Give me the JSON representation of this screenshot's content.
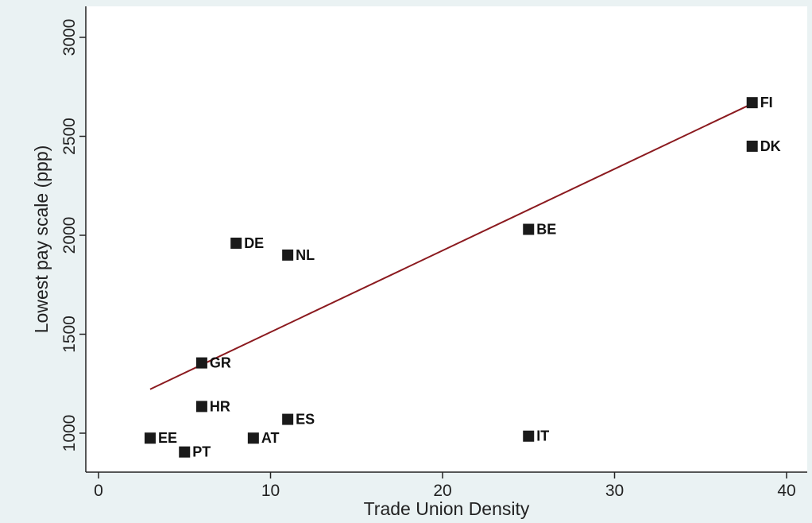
{
  "chart_data": {
    "type": "scatter",
    "title": "",
    "xlabel": "Trade Union Density",
    "ylabel": "Lowest pay scale (ppp)",
    "xlim": [
      0,
      40
    ],
    "ylim": [
      1000,
      3000
    ],
    "xticks": [
      "0",
      "10",
      "20",
      "30",
      "40"
    ],
    "yticks": [
      "1000",
      "1500",
      "2000",
      "2500",
      "3000"
    ],
    "points": [
      {
        "label": "FI",
        "x": 38,
        "y": 2670
      },
      {
        "label": "DK",
        "x": 38,
        "y": 2450
      },
      {
        "label": "BE",
        "x": 25,
        "y": 2030
      },
      {
        "label": "DE",
        "x": 8,
        "y": 1960
      },
      {
        "label": "NL",
        "x": 11,
        "y": 1900
      },
      {
        "label": "GR",
        "x": 6,
        "y": 1355
      },
      {
        "label": "HR",
        "x": 6,
        "y": 1135
      },
      {
        "label": "ES",
        "x": 11,
        "y": 1070
      },
      {
        "label": "IT",
        "x": 25,
        "y": 985
      },
      {
        "label": "AT",
        "x": 9,
        "y": 975
      },
      {
        "label": "EE",
        "x": 3,
        "y": 975
      },
      {
        "label": "PT",
        "x": 5,
        "y": 905
      }
    ],
    "fit_line": {
      "x": [
        3,
        38
      ],
      "y": [
        1222,
        2665
      ]
    },
    "grid": false,
    "legend": "none",
    "colors": {
      "background": "#eaf2f3",
      "plot_background": "#ffffff",
      "marker": "#1a1a1a",
      "fit_line": "#8b1a1f",
      "axis": "#222222"
    }
  }
}
